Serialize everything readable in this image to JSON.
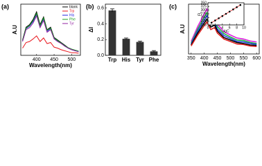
{
  "chart_data": [
    {
      "type": "line",
      "label": "(a)",
      "x_label": "Wavelength(nm)",
      "y_label": "A.U",
      "x": [
        360,
        370,
        380,
        390,
        400,
        410,
        420,
        430,
        440,
        450,
        460,
        470,
        480,
        490,
        500,
        510,
        520
      ],
      "xlim": [
        355,
        525
      ],
      "xticks": [
        400,
        450,
        500
      ],
      "ylim": [
        0,
        1
      ],
      "legend": "upper right",
      "series": [
        {
          "name": "blank",
          "color": "#000000",
          "values": [
            0.3,
            0.55,
            0.6,
            0.7,
            0.85,
            0.6,
            0.75,
            0.5,
            0.55,
            0.35,
            0.3,
            0.25,
            0.2,
            0.15,
            0.12,
            0.1,
            0.08
          ]
        },
        {
          "name": "Trp",
          "color": "#e8141b",
          "values": [
            0.14,
            0.25,
            0.27,
            0.32,
            0.38,
            0.27,
            0.34,
            0.23,
            0.25,
            0.16,
            0.14,
            0.11,
            0.09,
            0.07,
            0.05,
            0.05,
            0.04
          ]
        },
        {
          "name": "His",
          "color": "#2020e0",
          "values": [
            0.28,
            0.52,
            0.57,
            0.66,
            0.8,
            0.57,
            0.71,
            0.47,
            0.52,
            0.33,
            0.28,
            0.24,
            0.19,
            0.14,
            0.11,
            0.09,
            0.07
          ]
        },
        {
          "name": "Phe",
          "color": "#18a020",
          "values": [
            0.29,
            0.53,
            0.58,
            0.68,
            0.82,
            0.58,
            0.73,
            0.49,
            0.53,
            0.34,
            0.29,
            0.24,
            0.19,
            0.15,
            0.12,
            0.1,
            0.08
          ]
        },
        {
          "name": "Tyr",
          "color": "#9020a0",
          "values": [
            0.27,
            0.5,
            0.54,
            0.63,
            0.77,
            0.54,
            0.68,
            0.45,
            0.5,
            0.32,
            0.27,
            0.23,
            0.18,
            0.14,
            0.11,
            0.09,
            0.07
          ]
        }
      ]
    },
    {
      "type": "bar",
      "label": "(b)",
      "y_label": "ΔI",
      "categories": [
        "Trp",
        "His",
        "Tyr",
        "Phe"
      ],
      "values": [
        0.57,
        0.21,
        0.17,
        0.05
      ],
      "errors": [
        0.02,
        0.01,
        0.01,
        0.01
      ],
      "color": "#333333",
      "ylim": [
        0,
        0.65
      ],
      "yticks": [
        {
          "value": 0,
          "label": "0.0"
        },
        {
          "value": 0.2,
          "label": "0.2"
        },
        {
          "value": 0.4,
          "label": "0.4"
        },
        {
          "value": 0.6,
          "label": "0.6"
        }
      ]
    },
    {
      "type": "line",
      "label": "(c)",
      "x_label": "Wavelength(nm)",
      "y_label": "A.U",
      "x": [
        350,
        375,
        400,
        410,
        425,
        440,
        450,
        475,
        500,
        525,
        550,
        575,
        600
      ],
      "xlim": [
        340,
        610
      ],
      "xticks": [
        350,
        400,
        450,
        500,
        550,
        600
      ],
      "ylim": [
        0,
        1
      ],
      "series": [
        {
          "color": "#e020e0",
          "values": [
            0.25,
            0.55,
            0.8,
            0.9,
            0.7,
            0.75,
            0.6,
            0.45,
            0.38,
            0.32,
            0.3,
            0.26,
            0.24
          ]
        },
        {
          "color": "#20b040",
          "values": [
            0.22,
            0.5,
            0.74,
            0.83,
            0.64,
            0.69,
            0.55,
            0.41,
            0.34,
            0.28,
            0.27,
            0.23,
            0.21
          ]
        },
        {
          "color": "#2040e0",
          "values": [
            0.2,
            0.46,
            0.68,
            0.77,
            0.59,
            0.63,
            0.5,
            0.37,
            0.31,
            0.25,
            0.24,
            0.21,
            0.19
          ]
        },
        {
          "color": "#000000",
          "values": [
            0.18,
            0.42,
            0.62,
            0.7,
            0.54,
            0.58,
            0.46,
            0.33,
            0.28,
            0.23,
            0.21,
            0.18,
            0.17
          ]
        },
        {
          "color": "#e02020",
          "values": [
            0.16,
            0.38,
            0.57,
            0.64,
            0.49,
            0.53,
            0.42,
            0.3,
            0.25,
            0.2,
            0.19,
            0.16,
            0.15
          ]
        }
      ]
    },
    {
      "type": "scatter",
      "x_label": "-lgC",
      "y_label": "FL",
      "x": [
        1,
        2,
        3,
        4,
        5,
        6,
        7,
        8,
        9
      ],
      "values": [
        215,
        230,
        245,
        260,
        275,
        290,
        305,
        320,
        335
      ],
      "color": "#000000",
      "line_color": "#e02020",
      "xlim": [
        0,
        10
      ],
      "xticks": [
        0,
        2,
        4,
        6,
        8,
        10
      ],
      "ylim": [
        200,
        350
      ],
      "yticks": [
        200,
        225,
        250,
        275,
        300,
        325,
        350
      ]
    }
  ]
}
